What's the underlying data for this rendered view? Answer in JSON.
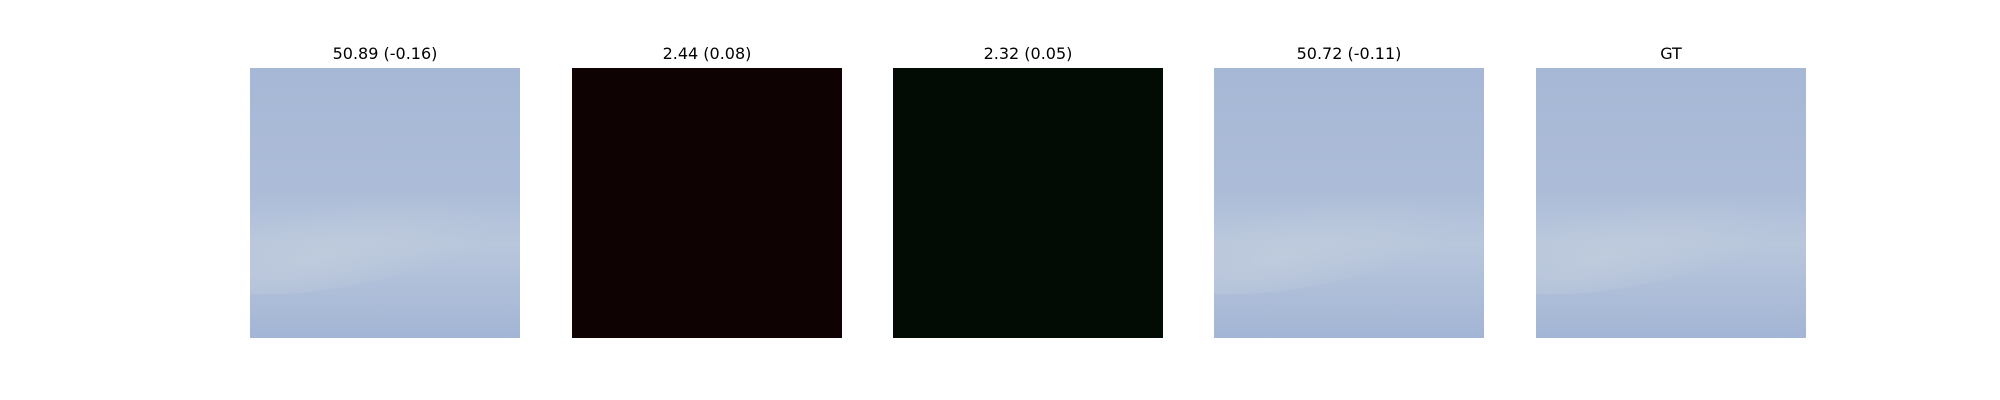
{
  "panels": [
    {
      "title": "50.89 (-0.16)",
      "image": "sky",
      "dark_color": ""
    },
    {
      "title": "2.44 (0.08)",
      "image": "dark",
      "dark_color": "#0f0203"
    },
    {
      "title": "2.32 (0.05)",
      "image": "dark",
      "dark_color": "#020c05"
    },
    {
      "title": "50.72 (-0.11)",
      "image": "sky",
      "dark_color": ""
    },
    {
      "title": "GT",
      "image": "sky",
      "dark_color": ""
    }
  ],
  "colors": {
    "sky_base": "#a9b9d6",
    "sky_light": "#bac8dc",
    "sky_deep": "#a0b3d4"
  }
}
